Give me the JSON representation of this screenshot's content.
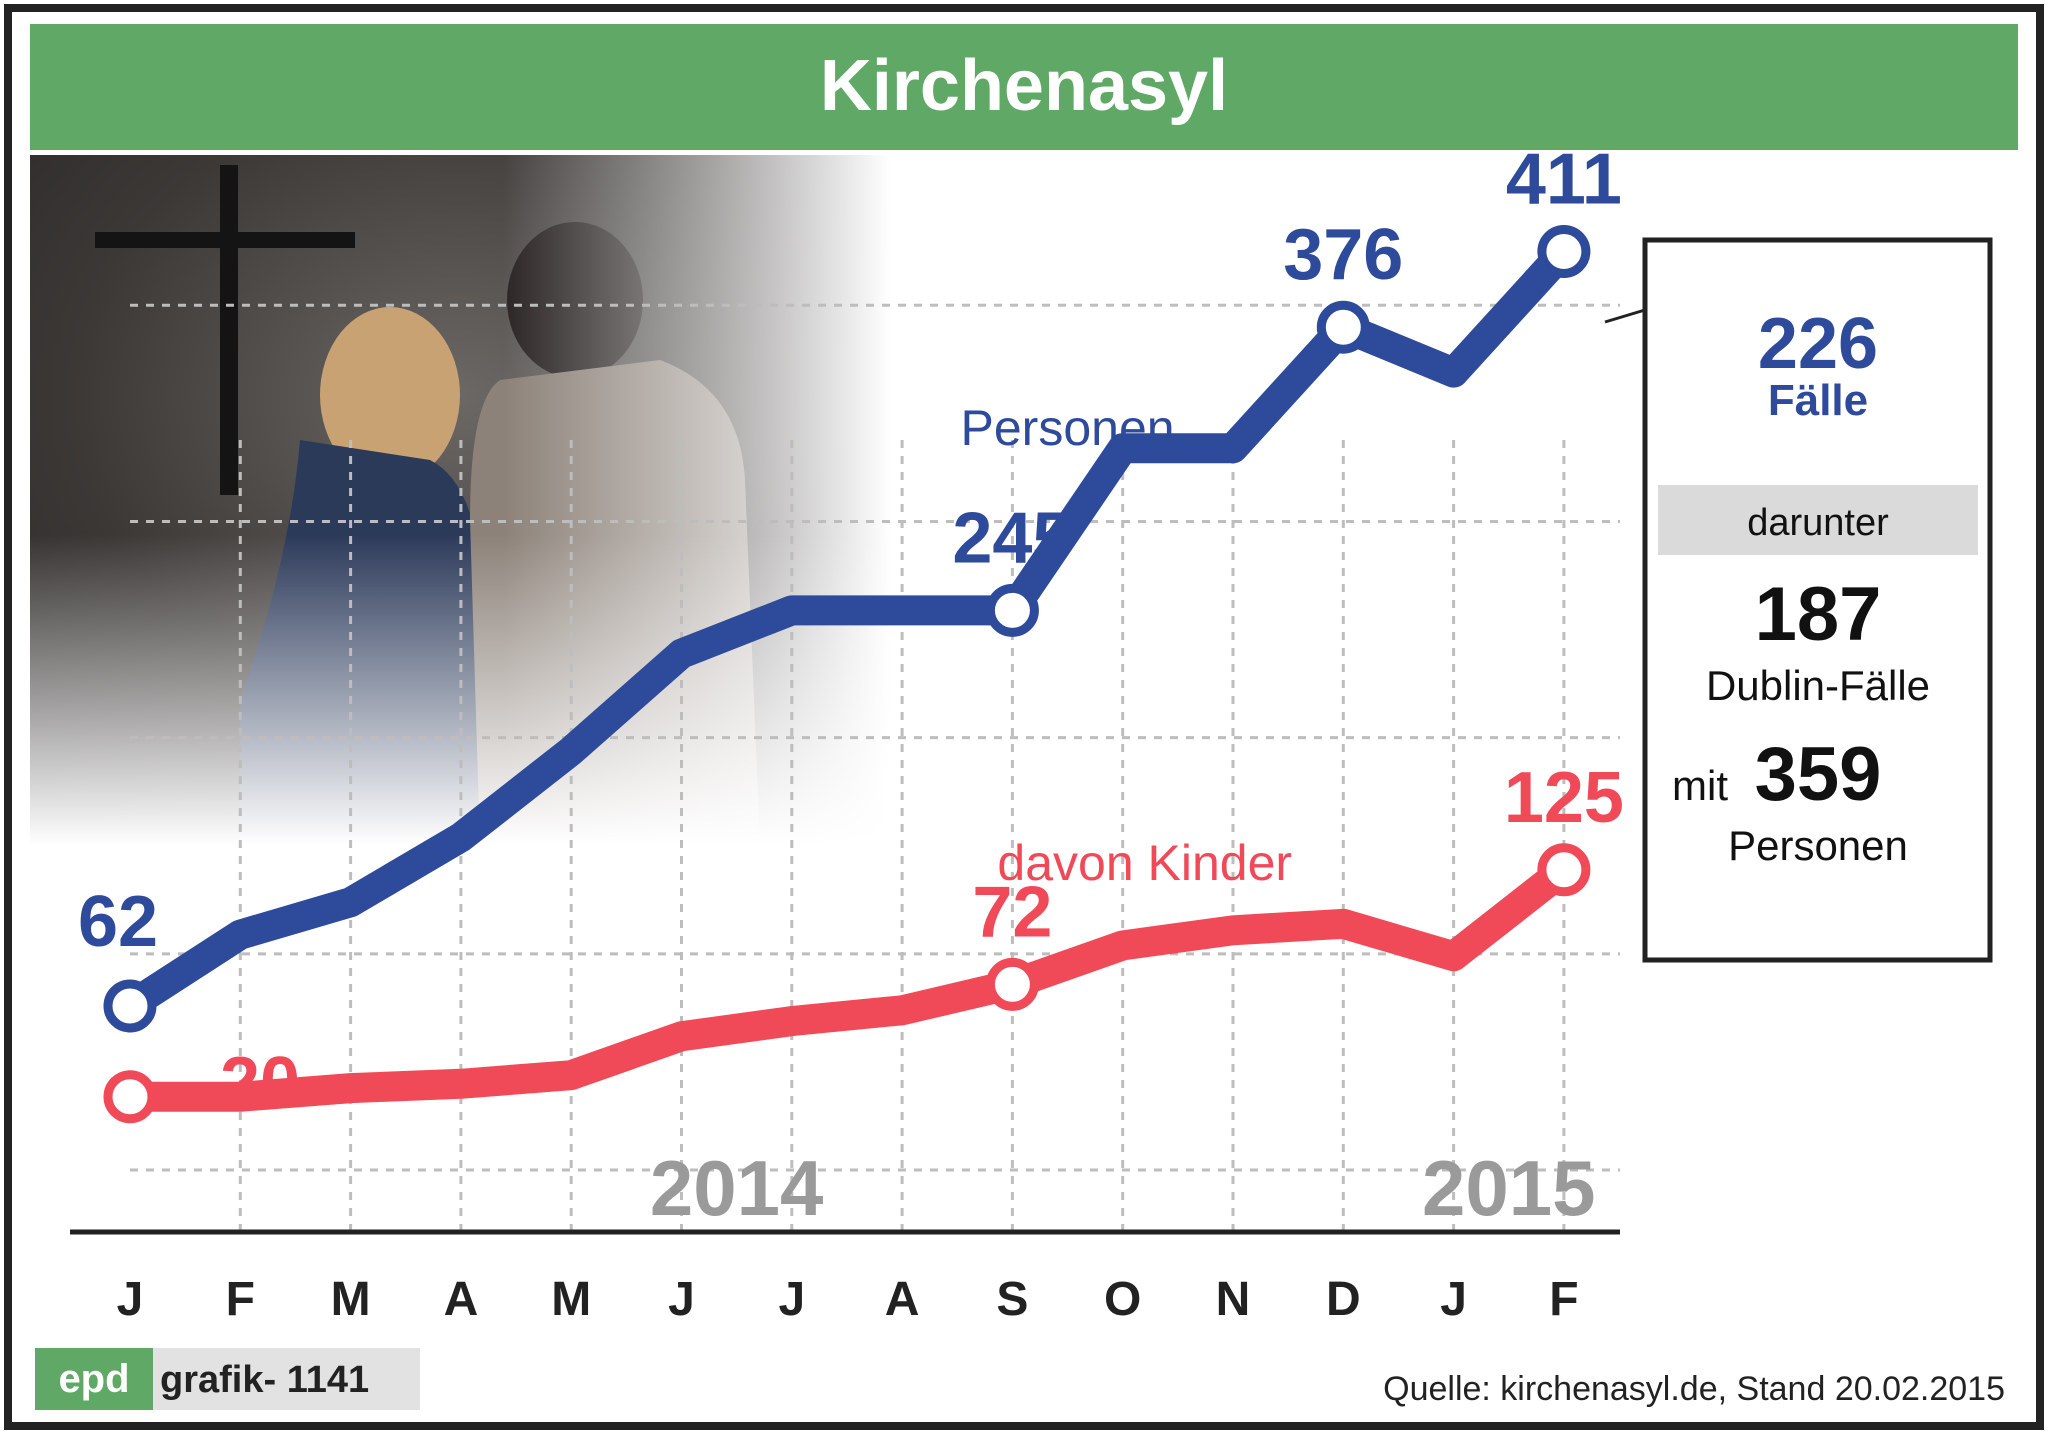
{
  "title": "Kirchenasyl",
  "colors": {
    "header_green": "#5fa866",
    "persons_blue": "#2d4a9b",
    "children_red": "#f04a58",
    "grid": "#bdbdbd",
    "year_gray": "#9a9a9a"
  },
  "chart_data": {
    "type": "line",
    "categories": [
      "J",
      "F",
      "M",
      "A",
      "M",
      "J",
      "J",
      "A",
      "S",
      "O",
      "N",
      "D",
      "J",
      "F"
    ],
    "years": [
      "2014",
      "2015"
    ],
    "series": [
      {
        "name": "Personen",
        "values": [
          62,
          95,
          110,
          140,
          180,
          225,
          245,
          245,
          245,
          320,
          320,
          376,
          355,
          411
        ],
        "labeled": [
          {
            "index": 0,
            "label": "62"
          },
          {
            "index": 8,
            "label": "245"
          },
          {
            "index": 11,
            "label": "376"
          },
          {
            "index": 13,
            "label": "411"
          }
        ]
      },
      {
        "name": "davon Kinder",
        "values": [
          20,
          20,
          24,
          26,
          30,
          48,
          55,
          60,
          72,
          90,
          97,
          100,
          85,
          125
        ],
        "labeled": [
          {
            "index": 0,
            "label": "20"
          },
          {
            "index": 8,
            "label": "72"
          },
          {
            "index": 13,
            "label": "125"
          }
        ]
      }
    ],
    "ylim": [
      0,
      450
    ],
    "grid": true
  },
  "infobox": {
    "cases_value": "226",
    "cases_label": "Fälle",
    "darunter": "darunter",
    "dublin_value": "187",
    "dublin_label": "Dublin-Fälle",
    "mit_label": "mit",
    "mit_value": "359",
    "persons_label": "Personen"
  },
  "footer": {
    "logo": "epd",
    "graphic_id": "grafik- 1141",
    "source": "Quelle: kirchenasyl.de, Stand 20.02.2015"
  }
}
